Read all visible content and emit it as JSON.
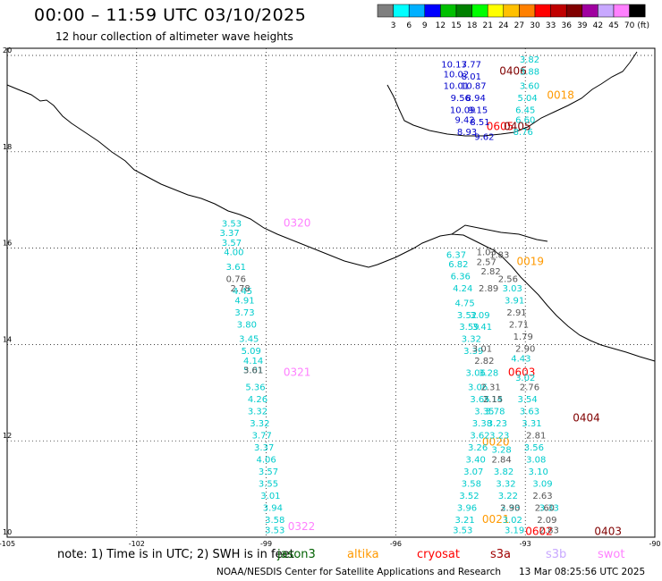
{
  "header": {
    "title": "00:00 – 11:59 UTC 03/10/2025",
    "subtitle": "12 hour collection of altimeter wave heights"
  },
  "colorbar": {
    "unit": "(ft)",
    "labels": [
      "3",
      "6",
      "9",
      "12",
      "15",
      "18",
      "21",
      "24",
      "27",
      "30",
      "33",
      "36",
      "39",
      "42",
      "45",
      "70"
    ],
    "colors": [
      "#7f7f7f",
      "#00ffff",
      "#00b0ff",
      "#0000ff",
      "#00c000",
      "#008000",
      "#00ff00",
      "#ffff00",
      "#ffc000",
      "#ff8000",
      "#ff0000",
      "#c00000",
      "#800000",
      "#a000a0",
      "#c8a8ff",
      "#ff80ff",
      "#000000"
    ]
  },
  "footer": {
    "note": "note:  1) Time is in UTC; 2) SWH is in feet",
    "credit": "NOAA/NESDIS Center for Satellite Applications and Research",
    "stamp": "13 Mar 08:25:56 UTC 2025",
    "satellites": [
      {
        "name": "jason3",
        "color": "#006000"
      },
      {
        "name": "altika",
        "color": "#ff9900"
      },
      {
        "name": "cryosat",
        "color": "#ff0000"
      },
      {
        "name": "s3a",
        "color": "#a00000"
      },
      {
        "name": "s3b",
        "color": "#c8a8ff"
      },
      {
        "name": "swot",
        "color": "#ff80ff"
      }
    ]
  },
  "chart_data": {
    "type": "scatter",
    "title": "00:00 – 11:59 UTC 03/10/2025",
    "xlim": [
      -105,
      -90
    ],
    "ylim": [
      10,
      20
    ],
    "x_ticks": [
      "-105",
      "-102",
      "-99",
      "-96",
      "-93",
      "-90"
    ],
    "y_ticks": [
      "10",
      "12",
      "14",
      "16",
      "18",
      "20"
    ],
    "grid": true,
    "passes": [
      {
        "label": "0320",
        "lon": -98.6,
        "lat": 16.45,
        "color": "#ff80ff"
      },
      {
        "label": "0321",
        "lon": -98.6,
        "lat": 13.35,
        "color": "#ff80ff"
      },
      {
        "label": "0322",
        "lon": -98.5,
        "lat": 10.15,
        "color": "#ff80ff"
      },
      {
        "label": "0406",
        "lon": -93.6,
        "lat": 19.6,
        "color": "#800000"
      },
      {
        "label": "0018",
        "lon": -92.5,
        "lat": 19.1,
        "color": "#ff9900"
      },
      {
        "label": "0605",
        "lon": -93.9,
        "lat": 18.45,
        "color": "#ff0000"
      },
      {
        "label": "0405",
        "lon": -93.5,
        "lat": 18.45,
        "color": "#800000"
      },
      {
        "label": "0019",
        "lon": -93.2,
        "lat": 15.65,
        "color": "#ff9900"
      },
      {
        "label": "0603",
        "lon": -93.4,
        "lat": 13.35,
        "color": "#ff0000"
      },
      {
        "label": "0404",
        "lon": -91.9,
        "lat": 12.4,
        "color": "#800000"
      },
      {
        "label": "0020",
        "lon": -94.0,
        "lat": 11.9,
        "color": "#ff9900"
      },
      {
        "label": "0021",
        "lon": -94.0,
        "lat": 10.3,
        "color": "#ff9900"
      },
      {
        "label": "0602",
        "lon": -93.0,
        "lat": 10.05,
        "color": "#ff0000"
      },
      {
        "label": "0403",
        "lon": -91.4,
        "lat": 10.05,
        "color": "#800000"
      }
    ],
    "series": [
      {
        "name": "track-A",
        "color": "#00cccc",
        "points": [
          {
            "lon": -99.8,
            "lat": 16.45,
            "v": "3.53"
          },
          {
            "lon": -99.85,
            "lat": 16.25,
            "v": "3.37"
          },
          {
            "lon": -99.8,
            "lat": 16.05,
            "v": "3.57"
          },
          {
            "lon": -99.75,
            "lat": 15.85,
            "v": "4.00"
          },
          {
            "lon": -99.7,
            "lat": 15.55,
            "v": "3.61"
          },
          {
            "lon": -99.55,
            "lat": 15.05,
            "v": "4.45"
          },
          {
            "lon": -99.5,
            "lat": 14.85,
            "v": "4.91"
          },
          {
            "lon": -99.5,
            "lat": 14.6,
            "v": "3.73"
          },
          {
            "lon": -99.45,
            "lat": 14.35,
            "v": "3.80"
          },
          {
            "lon": -99.4,
            "lat": 14.05,
            "v": "3.45"
          },
          {
            "lon": -99.35,
            "lat": 13.8,
            "v": "5.09"
          },
          {
            "lon": -99.3,
            "lat": 13.6,
            "v": "4.14"
          },
          {
            "lon": -99.3,
            "lat": 13.4,
            "v": "5.01"
          },
          {
            "lon": -99.25,
            "lat": 13.05,
            "v": "5.36"
          },
          {
            "lon": -99.2,
            "lat": 12.8,
            "v": "4.26"
          },
          {
            "lon": -99.2,
            "lat": 12.55,
            "v": "3.32"
          },
          {
            "lon": -99.15,
            "lat": 12.3,
            "v": "3.32"
          },
          {
            "lon": -99.1,
            "lat": 12.05,
            "v": "3.77"
          },
          {
            "lon": -99.05,
            "lat": 11.8,
            "v": "3.37"
          },
          {
            "lon": -99.0,
            "lat": 11.55,
            "v": "4.06"
          },
          {
            "lon": -98.95,
            "lat": 11.3,
            "v": "3.57"
          },
          {
            "lon": -98.95,
            "lat": 11.05,
            "v": "3.55"
          },
          {
            "lon": -98.9,
            "lat": 10.8,
            "v": "3.01"
          },
          {
            "lon": -98.85,
            "lat": 10.55,
            "v": "3.94"
          },
          {
            "lon": -98.8,
            "lat": 10.3,
            "v": "3.58"
          },
          {
            "lon": -98.8,
            "lat": 10.08,
            "v": "3.53"
          }
        ]
      },
      {
        "name": "track-A-grey",
        "color": "#555555",
        "points": [
          {
            "lon": -99.7,
            "lat": 15.3,
            "v": "0.76"
          },
          {
            "lon": -99.6,
            "lat": 15.1,
            "v": "2.78"
          },
          {
            "lon": -99.3,
            "lat": 13.4,
            "v": "3.61"
          }
        ]
      },
      {
        "name": "track-B",
        "color": "#0000cc",
        "points": [
          {
            "lon": -94.65,
            "lat": 19.75,
            "v": "10.13"
          },
          {
            "lon": -94.6,
            "lat": 19.55,
            "v": "10.02"
          },
          {
            "lon": -94.6,
            "lat": 19.3,
            "v": "10.01"
          },
          {
            "lon": -94.5,
            "lat": 19.05,
            "v": "9.56"
          },
          {
            "lon": -94.45,
            "lat": 18.8,
            "v": "10.09"
          },
          {
            "lon": -94.4,
            "lat": 18.6,
            "v": "9.42"
          },
          {
            "lon": -94.35,
            "lat": 18.35,
            "v": "8.93"
          },
          {
            "lon": -94.25,
            "lat": 19.75,
            "v": "7.77"
          },
          {
            "lon": -94.25,
            "lat": 19.5,
            "v": "8.01"
          },
          {
            "lon": -94.2,
            "lat": 19.3,
            "v": "10.87"
          },
          {
            "lon": -94.15,
            "lat": 19.05,
            "v": "8.94"
          },
          {
            "lon": -94.1,
            "lat": 18.8,
            "v": "9.15"
          },
          {
            "lon": -94.05,
            "lat": 18.55,
            "v": "8.51"
          },
          {
            "lon": -93.95,
            "lat": 18.25,
            "v": "9.62"
          }
        ]
      },
      {
        "name": "track-C",
        "color": "#00cccc",
        "points": [
          {
            "lon": -92.9,
            "lat": 19.85,
            "v": "3.82"
          },
          {
            "lon": -92.9,
            "lat": 19.6,
            "v": "3.88"
          },
          {
            "lon": -92.9,
            "lat": 19.3,
            "v": "3.60"
          },
          {
            "lon": -92.95,
            "lat": 19.05,
            "v": "5.04"
          },
          {
            "lon": -93.0,
            "lat": 18.8,
            "v": "6.45"
          },
          {
            "lon": -93.0,
            "lat": 18.6,
            "v": "6.60"
          },
          {
            "lon": -93.05,
            "lat": 18.35,
            "v": "8.76"
          }
        ]
      },
      {
        "name": "track-D",
        "color": "#00cccc",
        "points": [
          {
            "lon": -94.6,
            "lat": 15.8,
            "v": "6.37"
          },
          {
            "lon": -94.55,
            "lat": 15.6,
            "v": "6.82"
          },
          {
            "lon": -94.5,
            "lat": 15.35,
            "v": "6.36"
          },
          {
            "lon": -94.45,
            "lat": 15.1,
            "v": "4.24"
          },
          {
            "lon": -94.4,
            "lat": 14.8,
            "v": "4.75"
          },
          {
            "lon": -94.35,
            "lat": 14.55,
            "v": "3.52"
          },
          {
            "lon": -94.3,
            "lat": 14.3,
            "v": "3.59"
          },
          {
            "lon": -94.25,
            "lat": 14.05,
            "v": "3.32"
          },
          {
            "lon": -94.2,
            "lat": 13.8,
            "v": "3.39"
          },
          {
            "lon": -94.15,
            "lat": 13.35,
            "v": "3.06"
          },
          {
            "lon": -94.1,
            "lat": 13.05,
            "v": "3.06"
          },
          {
            "lon": -94.05,
            "lat": 12.8,
            "v": "3.65"
          },
          {
            "lon": -93.95,
            "lat": 12.55,
            "v": "3.35"
          },
          {
            "lon": -94.0,
            "lat": 12.3,
            "v": "3.38"
          },
          {
            "lon": -94.05,
            "lat": 12.05,
            "v": "3.62"
          },
          {
            "lon": -94.1,
            "lat": 11.8,
            "v": "3.26"
          },
          {
            "lon": -94.15,
            "lat": 11.55,
            "v": "3.40"
          },
          {
            "lon": -94.2,
            "lat": 11.3,
            "v": "3.07"
          },
          {
            "lon": -94.25,
            "lat": 11.05,
            "v": "3.58"
          },
          {
            "lon": -94.3,
            "lat": 10.8,
            "v": "3.52"
          },
          {
            "lon": -94.35,
            "lat": 10.55,
            "v": "3.96"
          },
          {
            "lon": -94.4,
            "lat": 10.3,
            "v": "3.21"
          },
          {
            "lon": -94.45,
            "lat": 10.08,
            "v": "3.53"
          }
        ]
      },
      {
        "name": "track-E",
        "color": "#00cccc",
        "points": [
          {
            "lon": -94.05,
            "lat": 14.55,
            "v": "3.09"
          },
          {
            "lon": -94.0,
            "lat": 14.3,
            "v": "3.41"
          },
          {
            "lon": -93.85,
            "lat": 13.35,
            "v": "3.28"
          },
          {
            "lon": -93.75,
            "lat": 12.8,
            "v": "3.14"
          },
          {
            "lon": -93.7,
            "lat": 12.55,
            "v": "3.78"
          },
          {
            "lon": -93.65,
            "lat": 12.3,
            "v": "3.23"
          },
          {
            "lon": -93.6,
            "lat": 12.05,
            "v": "3.23"
          },
          {
            "lon": -93.55,
            "lat": 11.75,
            "v": "3.28"
          },
          {
            "lon": -93.5,
            "lat": 11.3,
            "v": "3.82"
          },
          {
            "lon": -93.45,
            "lat": 11.05,
            "v": "3.32"
          },
          {
            "lon": -93.4,
            "lat": 10.8,
            "v": "3.22"
          },
          {
            "lon": -93.35,
            "lat": 10.55,
            "v": "3.33"
          },
          {
            "lon": -93.3,
            "lat": 10.3,
            "v": "3.02"
          },
          {
            "lon": -93.25,
            "lat": 10.08,
            "v": "3.19"
          }
        ]
      },
      {
        "name": "track-F",
        "color": "#00cccc",
        "points": [
          {
            "lon": -93.3,
            "lat": 15.1,
            "v": "3.03"
          },
          {
            "lon": -93.25,
            "lat": 14.85,
            "v": "3.91"
          },
          {
            "lon": -93.1,
            "lat": 13.65,
            "v": "4.43"
          },
          {
            "lon": -93.0,
            "lat": 13.25,
            "v": "3.02"
          },
          {
            "lon": -92.95,
            "lat": 12.8,
            "v": "3.54"
          },
          {
            "lon": -92.9,
            "lat": 12.55,
            "v": "3.63"
          },
          {
            "lon": -92.85,
            "lat": 12.3,
            "v": "3.31"
          },
          {
            "lon": -92.8,
            "lat": 11.8,
            "v": "3.56"
          },
          {
            "lon": -92.75,
            "lat": 11.55,
            "v": "3.08"
          },
          {
            "lon": -92.7,
            "lat": 11.3,
            "v": "3.10"
          },
          {
            "lon": -92.6,
            "lat": 11.05,
            "v": "3.09"
          },
          {
            "lon": -92.45,
            "lat": 10.55,
            "v": "3.33"
          }
        ]
      },
      {
        "name": "track-grey",
        "color": "#555555",
        "points": [
          {
            "lon": -93.9,
            "lat": 15.85,
            "v": "1.03"
          },
          {
            "lon": -93.6,
            "lat": 15.8,
            "v": "1.83"
          },
          {
            "lon": -93.9,
            "lat": 15.65,
            "v": "2.57"
          },
          {
            "lon": -93.8,
            "lat": 15.45,
            "v": "2.82"
          },
          {
            "lon": -93.4,
            "lat": 15.3,
            "v": "2.56"
          },
          {
            "lon": -93.85,
            "lat": 15.1,
            "v": "2.89"
          },
          {
            "lon": -94.0,
            "lat": 13.85,
            "v": "3.01"
          },
          {
            "lon": -93.95,
            "lat": 13.6,
            "v": "2.82"
          },
          {
            "lon": -93.8,
            "lat": 13.05,
            "v": "2.31"
          },
          {
            "lon": -93.75,
            "lat": 12.8,
            "v": "2.15"
          },
          {
            "lon": -93.2,
            "lat": 14.6,
            "v": "2.91"
          },
          {
            "lon": -93.15,
            "lat": 14.35,
            "v": "2.71"
          },
          {
            "lon": -93.05,
            "lat": 14.1,
            "v": "1.79"
          },
          {
            "lon": -93.0,
            "lat": 13.85,
            "v": "2.90"
          },
          {
            "lon": -92.9,
            "lat": 13.05,
            "v": "2.76"
          },
          {
            "lon": -92.75,
            "lat": 12.05,
            "v": "2.81"
          },
          {
            "lon": -93.55,
            "lat": 11.55,
            "v": "2.84"
          },
          {
            "lon": -93.35,
            "lat": 10.55,
            "v": "2.90"
          },
          {
            "lon": -92.6,
            "lat": 10.8,
            "v": "2.63"
          },
          {
            "lon": -92.55,
            "lat": 10.55,
            "v": "2.60"
          },
          {
            "lon": -92.5,
            "lat": 10.3,
            "v": "2.09"
          },
          {
            "lon": -92.45,
            "lat": 10.08,
            "v": "2.83"
          }
        ]
      }
    ]
  }
}
